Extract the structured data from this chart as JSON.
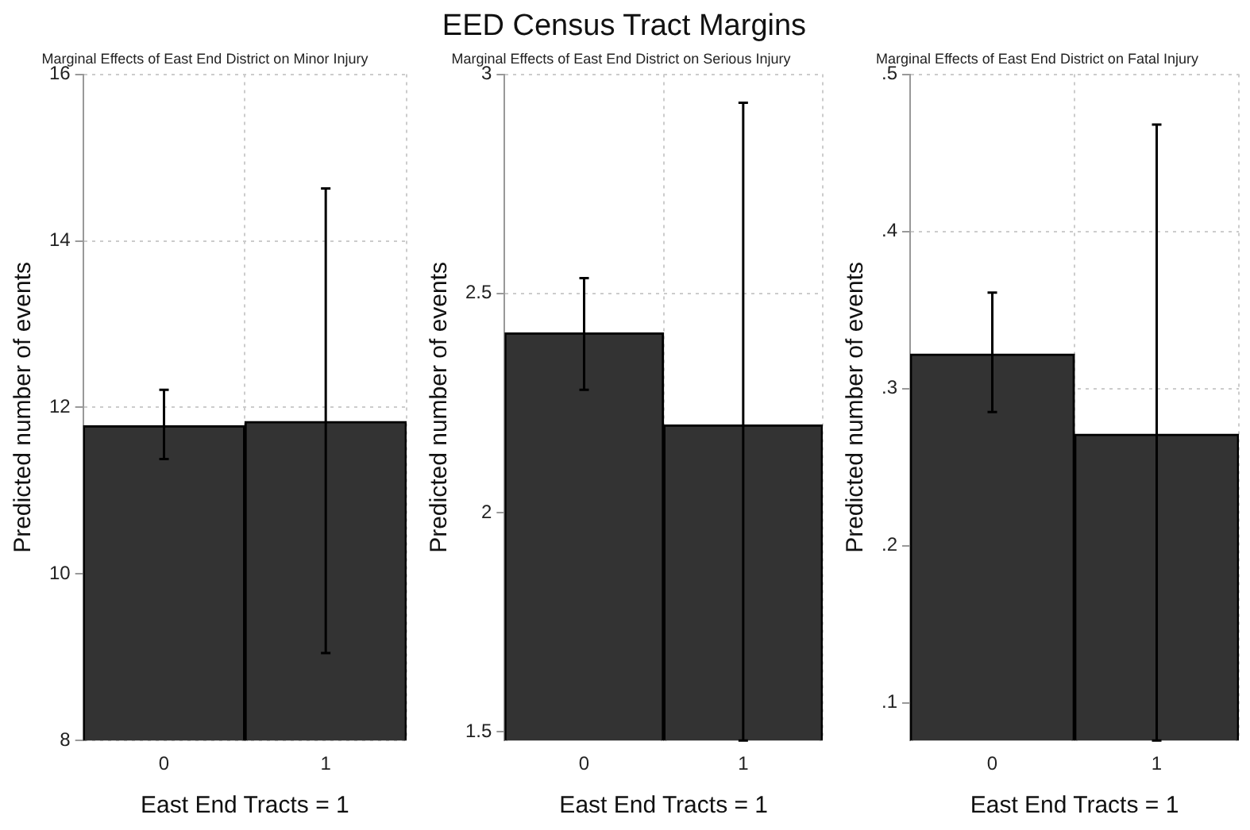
{
  "chart_data": [
    {
      "type": "bar",
      "subtitle": "Marginal Effects of East End District on Minor Injury",
      "xlabel": "East End Tracts = 1",
      "ylabel": "Predicted number of events",
      "categories": [
        "0",
        "1"
      ],
      "values": [
        11.78,
        11.83
      ],
      "color": "#333333",
      "errors": [
        [
          11.38,
          12.21
        ],
        [
          9.05,
          14.63
        ]
      ],
      "ylim": [
        8,
        16
      ],
      "yticks": [
        8,
        10,
        12,
        14,
        16
      ],
      "grid": true,
      "legend": false
    },
    {
      "type": "bar",
      "title": "EED Census Tract Margins",
      "subtitle": "Marginal Effects of East End District on Serious Injury",
      "xlabel": "East End Tracts = 1",
      "ylabel": "Predicted number of events",
      "categories": [
        "0",
        "1"
      ],
      "values": [
        2.41,
        2.2
      ],
      "color": "#333333",
      "errors": [
        [
          2.28,
          2.535
        ],
        [
          1.48,
          2.935
        ]
      ],
      "ylim": [
        1.48,
        3
      ],
      "yticks": [
        1.5,
        2,
        2.5,
        3
      ],
      "grid": true,
      "legend": false
    },
    {
      "type": "bar",
      "subtitle": "Marginal Effects of East End District on Fatal Injury",
      "xlabel": "East End Tracts = 1",
      "ylabel": "Predicted number of events",
      "categories": [
        "0",
        "1"
      ],
      "values": [
        0.322,
        0.271
      ],
      "color": "#333333",
      "errors": [
        [
          0.285,
          0.361
        ],
        [
          0.076,
          0.468
        ]
      ],
      "ylim": [
        0.076,
        0.5
      ],
      "yticks": [
        {
          "value": 0.1,
          "label": ".1"
        },
        {
          "value": 0.2,
          "label": ".2"
        },
        {
          "value": 0.3,
          "label": ".3"
        },
        {
          "value": 0.4,
          "label": ".4"
        },
        {
          "value": 0.5,
          "label": ".5"
        }
      ],
      "grid": true,
      "legend": false
    }
  ]
}
